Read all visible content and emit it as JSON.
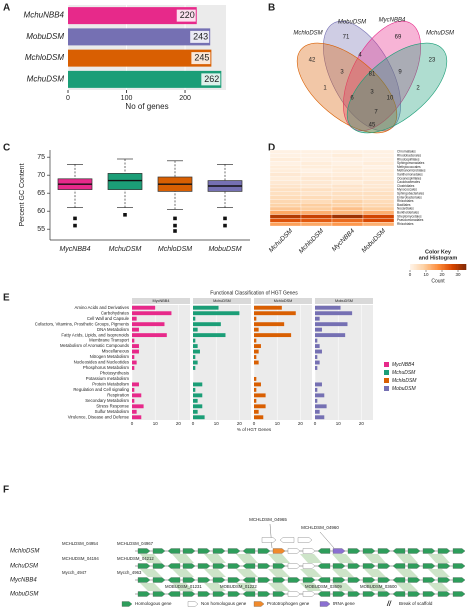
{
  "panels": [
    "A",
    "B",
    "C",
    "D",
    "E",
    "F"
  ],
  "chart_data": [
    {
      "type": "hbar",
      "categories": [
        "MchuNBB4",
        "MobuDSM",
        "MchloDSM",
        "MchuDSM"
      ],
      "values": [
        220,
        243,
        245,
        262
      ],
      "colors": [
        "#e7298a",
        "#7570b3",
        "#d95f02",
        "#1b9e77"
      ],
      "xlabel": "No of genes",
      "xlim": [
        0,
        270
      ],
      "xticks": [
        0,
        100,
        200
      ]
    },
    {
      "type": "venn",
      "sets": [
        {
          "name": "MobuDSM",
          "color": "#7570b3"
        },
        {
          "name": "MycNBB4",
          "color": "#e7298a"
        },
        {
          "name": "MchloDSM",
          "color": "#d95f02"
        },
        {
          "name": "MchuDSM",
          "color": "#1b9e77"
        }
      ],
      "regions": [
        71,
        69,
        42,
        23,
        4,
        3,
        9,
        81,
        1,
        2,
        6,
        10,
        3,
        7,
        45
      ]
    },
    {
      "type": "box",
      "ylabel": "Percent GC Content",
      "categories": [
        "MycNBB4",
        "MchuDSM",
        "MchloDSM",
        "MobuDSM"
      ],
      "colors": [
        "#e7298a",
        "#1b9e77",
        "#d95f02",
        "#7570b3"
      ],
      "boxes": [
        {
          "min": 61,
          "q1": 66,
          "median": 67.5,
          "q3": 69,
          "max": 73,
          "outliers": [
            58,
            56
          ]
        },
        {
          "min": 61,
          "q1": 66,
          "median": 68.5,
          "q3": 70.5,
          "max": 74.5,
          "outliers": [
            59
          ]
        },
        {
          "min": 60.5,
          "q1": 65.5,
          "median": 67.5,
          "q3": 69.5,
          "max": 74,
          "outliers": [
            58,
            56,
            54.5
          ]
        },
        {
          "min": 61,
          "q1": 65.5,
          "median": 67,
          "q3": 68.5,
          "max": 73,
          "outliers": [
            58,
            56
          ]
        }
      ],
      "ylim": [
        52,
        77
      ],
      "yticks": [
        55,
        60,
        65,
        70,
        75
      ]
    },
    {
      "type": "heatmap",
      "categories": [
        "MchuDSM",
        "MchloDSM",
        "MycNBB4",
        "MobuDSM"
      ],
      "rows": [
        "Chromatiales",
        "Rhodobacterales",
        "Rhodospirillales",
        "Sphingomonadales",
        "Methylococcales",
        "Methanomicrobiales",
        "Xanthomonadales",
        "Oceanospirillales",
        "Caulobacterales",
        "Clostridiales",
        "Myxococcales",
        "Sphingobacteriales",
        "Enterobacteriales",
        "Rhizobiales",
        "Bacillales",
        "Nocardiales",
        "Burkholderiales",
        "Streptomycetales",
        "Pseudomonadales",
        "Rhizobiales"
      ],
      "values": [
        [
          1,
          1,
          1,
          1
        ],
        [
          1,
          1,
          2,
          1
        ],
        [
          2,
          1,
          1,
          1
        ],
        [
          1,
          2,
          1,
          2
        ],
        [
          2,
          2,
          2,
          1
        ],
        [
          2,
          1,
          2,
          2
        ],
        [
          3,
          2,
          2,
          2
        ],
        [
          2,
          3,
          3,
          2
        ],
        [
          3,
          3,
          2,
          3
        ],
        [
          4,
          3,
          4,
          3
        ],
        [
          5,
          5,
          4,
          4
        ],
        [
          5,
          4,
          5,
          5
        ],
        [
          6,
          6,
          5,
          5
        ],
        [
          7,
          6,
          8,
          6
        ],
        [
          8,
          9,
          8,
          7
        ],
        [
          10,
          9,
          11,
          9
        ],
        [
          14,
          13,
          12,
          13
        ],
        [
          30,
          28,
          32,
          27
        ],
        [
          25,
          24,
          22,
          26
        ],
        [
          15,
          14,
          16,
          13
        ]
      ],
      "zlim": [
        0,
        35
      ],
      "colors": [
        "#fff5eb",
        "#fdd0a2",
        "#fd8d3c",
        "#d94801",
        "#7f2704"
      ],
      "key_title": [
        "Color Key",
        "and Histogram"
      ],
      "zlabel": "Count",
      "zticks": [
        0,
        10,
        20,
        30
      ]
    },
    {
      "type": "facet_bar",
      "title": "Functional Classification of HGT Genes",
      "categories": [
        "Amino Acids and Derivatives",
        "Carbohydrates",
        "Cell Wall and Capsule",
        "Cofactors, Vitamins, Prosthetic Groups, Pigments",
        "DNA Metabolism",
        "Fatty Acids, Lipids, and Isoprenoids",
        "Membrane Transport",
        "Metabolism of Aromatic Compounds",
        "Miscellaneous",
        "Nitrogen Metabolism",
        "Nucleosides and Nucleotides",
        "Phosphorus Metabolism",
        "Photosynthesis",
        "Potassium metabolism",
        "Protein Metabolism",
        "Regulation and Cell signaling",
        "Respiration",
        "Secondary Metabolism",
        "Stress Response",
        "Sulfur Metabolism",
        "Virulence, Disease and Defense"
      ],
      "series": [
        {
          "name": "MycNBB4",
          "color": "#e7298a",
          "values": [
            10,
            17,
            2,
            14,
            3,
            15,
            1,
            3,
            3,
            1,
            2,
            1,
            0,
            0,
            3,
            1,
            4,
            1,
            5,
            2,
            4
          ]
        },
        {
          "name": "MchuDSM",
          "color": "#1b9e77",
          "values": [
            11,
            20,
            1,
            12,
            2,
            14,
            1,
            2,
            3,
            1,
            2,
            1,
            0,
            0,
            4,
            1,
            4,
            2,
            4,
            2,
            5
          ]
        },
        {
          "name": "MchloDSM",
          "color": "#d95f02",
          "values": [
            12,
            18,
            1,
            13,
            2,
            16,
            1,
            3,
            2,
            1,
            2,
            0,
            0,
            1,
            3,
            1,
            5,
            1,
            5,
            2,
            4
          ]
        },
        {
          "name": "MobuDSM",
          "color": "#7570b3",
          "values": [
            11,
            16,
            2,
            14,
            3,
            13,
            1,
            2,
            3,
            1,
            2,
            1,
            0,
            0,
            3,
            1,
            4,
            1,
            5,
            2,
            4
          ]
        }
      ],
      "xlabel": "% of HGT Genes",
      "xlim": [
        0,
        25
      ],
      "xticks": [
        0,
        10,
        20
      ]
    }
  ],
  "genome": {
    "top_genes": [
      "MCHLDSM_04965",
      "MCHLDSM_04960"
    ],
    "tracks": [
      {
        "name": "MchloDSM",
        "genes": [
          "MCHLDSM_04954",
          "MCHLDSM_04967"
        ]
      },
      {
        "name": "MchuDSM",
        "genes": [
          "MCHUDSM_04194",
          "MCHUDSM_04212"
        ]
      },
      {
        "name": "MycNBB4",
        "genes": [
          "Mycch_4947",
          "Mycch_4963"
        ]
      },
      {
        "name": "MobuDSM",
        "genes": [
          "MOBUDSM_01231",
          "MOBUDSM_01222",
          "MOBUDSM_03609",
          "MOBUDSM_03600"
        ]
      }
    ],
    "legend": [
      "Homologous gene",
      "Non homologous gene",
      "Prototrophogen gene",
      "tRNA gene",
      "Break of scaffold"
    ]
  }
}
